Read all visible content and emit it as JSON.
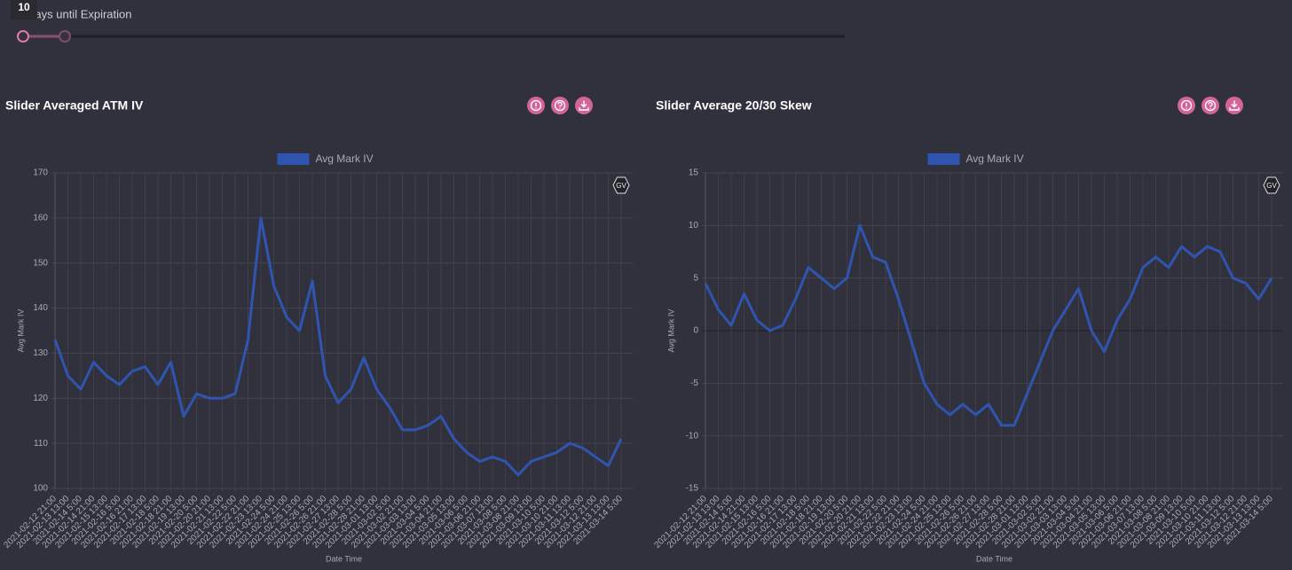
{
  "slider": {
    "label": "Days until Expiration",
    "value": 10
  },
  "watermark": "GV",
  "chart_data": [
    {
      "type": "line",
      "title": "Slider Averaged ATM IV",
      "ylabel": "Avg Mark IV",
      "xlabel": "Date Time",
      "legend": "top",
      "grid": true,
      "categories": [
        "2021-02-12 21:00",
        "2021-02-13 13:00",
        "2021-02-14 5:00",
        "2021-02-14 21:00",
        "2021-02-15 13:00",
        "2021-02-16 5:00",
        "2021-02-16 21:00",
        "2021-02-17 13:00",
        "2021-02-18 5:00",
        "2021-02-18 21:00",
        "2021-02-19 13:00",
        "2021-02-20 5:00",
        "2021-02-20 21:00",
        "2021-02-21 13:00",
        "2021-02-22 5:00",
        "2021-02-22 21:00",
        "2021-02-23 13:00",
        "2021-02-24 5:00",
        "2021-02-24 21:00",
        "2021-02-25 13:00",
        "2021-02-26 5:00",
        "2021-02-26 21:00",
        "2021-02-27 13:00",
        "2021-02-28 5:00",
        "2021-02-28 21:00",
        "2021-03-01 13:00",
        "2021-03-02 5:00",
        "2021-03-02 21:00",
        "2021-03-03 13:00",
        "2021-03-04 5:00",
        "2021-03-04 21:00",
        "2021-03-05 13:00",
        "2021-03-06 5:00",
        "2021-03-06 21:00",
        "2021-03-07 13:00",
        "2021-03-08 5:00",
        "2021-03-08 21:00",
        "2021-03-09 13:00",
        "2021-03-10 5:00",
        "2021-03-10 21:00",
        "2021-03-11 13:00",
        "2021-03-12 5:00",
        "2021-03-12 21:00",
        "2021-03-13 13:00",
        "2021-03-14 5:00"
      ],
      "series": [
        {
          "name": "Avg Mark IV",
          "color": "#2f55b0",
          "values": [
            133,
            125,
            122,
            128,
            125,
            123,
            126,
            127,
            123,
            128,
            116,
            121,
            120,
            120,
            121,
            133,
            160,
            145,
            138,
            135,
            146,
            125,
            119,
            122,
            129,
            122,
            118,
            113,
            113,
            114,
            116,
            111,
            108,
            106,
            107,
            106,
            103,
            106,
            107,
            108,
            110,
            109,
            107,
            105,
            111
          ]
        }
      ],
      "ylim": [
        100,
        170
      ],
      "yticks": [
        100,
        110,
        120,
        130,
        140,
        150,
        160,
        170
      ]
    },
    {
      "type": "line",
      "title": "Slider Average 20/30 Skew",
      "ylabel": "Avg Mark IV",
      "xlabel": "Date Time",
      "legend": "top",
      "grid": true,
      "categories": [
        "2021-02-12 21:00",
        "2021-02-13 13:00",
        "2021-02-14 5:00",
        "2021-02-14 21:00",
        "2021-02-15 13:00",
        "2021-02-16 5:00",
        "2021-02-16 21:00",
        "2021-02-17 13:00",
        "2021-02-18 5:00",
        "2021-02-18 21:00",
        "2021-02-19 13:00",
        "2021-02-20 5:00",
        "2021-02-20 21:00",
        "2021-02-21 13:00",
        "2021-02-22 5:00",
        "2021-02-22 21:00",
        "2021-02-23 13:00",
        "2021-02-24 5:00",
        "2021-02-24 21:00",
        "2021-02-25 13:00",
        "2021-02-26 5:00",
        "2021-02-26 21:00",
        "2021-02-27 13:00",
        "2021-02-28 5:00",
        "2021-02-28 21:00",
        "2021-03-01 13:00",
        "2021-03-02 5:00",
        "2021-03-02 21:00",
        "2021-03-03 13:00",
        "2021-03-04 5:00",
        "2021-03-04 21:00",
        "2021-03-05 13:00",
        "2021-03-06 5:00",
        "2021-03-06 21:00",
        "2021-03-07 13:00",
        "2021-03-08 5:00",
        "2021-03-08 21:00",
        "2021-03-09 13:00",
        "2021-03-10 5:00",
        "2021-03-10 21:00",
        "2021-03-11 13:00",
        "2021-03-12 5:00",
        "2021-03-12 21:00",
        "2021-03-13 13:00",
        "2021-03-14 5:00"
      ],
      "series": [
        {
          "name": "Avg Mark IV",
          "color": "#2f55b0",
          "values": [
            4.5,
            2,
            0.5,
            3.5,
            1,
            0,
            0.5,
            3,
            6,
            5,
            4,
            5,
            10,
            7,
            6.5,
            3,
            -1,
            -5,
            -7,
            -8,
            -7,
            -8,
            -7,
            -9,
            -9,
            -6,
            -3,
            0,
            2,
            4,
            0,
            -2,
            1,
            3,
            6,
            7,
            6,
            8,
            7,
            8,
            7.5,
            5,
            4.5,
            3,
            5
          ]
        }
      ],
      "ylim": [
        -15,
        15
      ],
      "yticks": [
        -15,
        -10,
        -5,
        0,
        5,
        10,
        15
      ]
    }
  ]
}
